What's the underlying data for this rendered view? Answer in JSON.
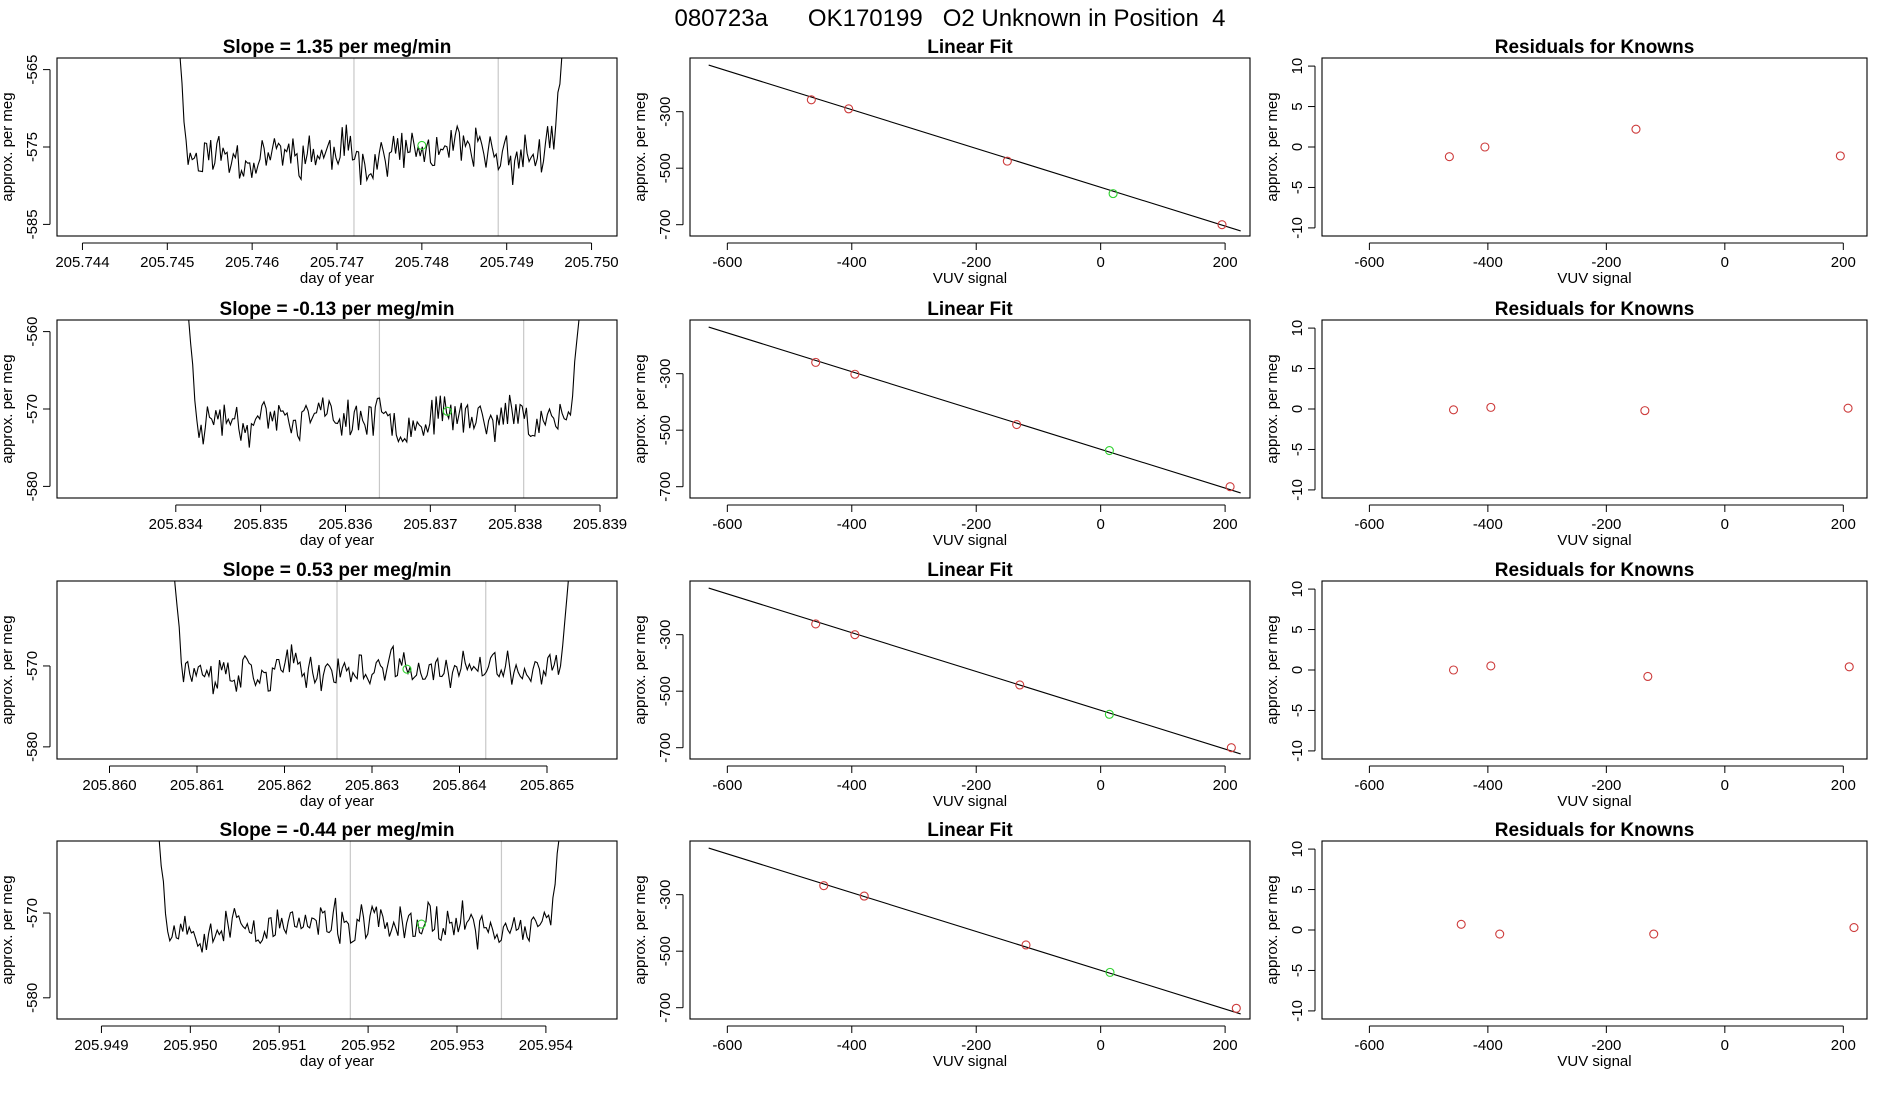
{
  "page_title": "080723a      OK170199   O2 Unknown in Position  4",
  "colors": {
    "axis": "#000000",
    "trace": "#000000",
    "known": "#cd3b3b",
    "unknown": "#2fd12f",
    "vline": "#c8c8c8"
  },
  "chart_data": [
    {
      "type": "line",
      "panel": "time-series",
      "row": 1,
      "title": "Slope =  1.35  per meg/min",
      "xlabel": "day of year",
      "ylabel": "approx. per meg",
      "xlim": [
        205.7437,
        205.7503
      ],
      "ylim": [
        -586.5,
        -563.5
      ],
      "xticks": [
        205.744,
        205.745,
        205.746,
        205.747,
        205.748,
        205.749,
        205.75
      ],
      "xtick_labels": [
        "205.744",
        "205.745",
        "205.746",
        "205.747",
        "205.748",
        "205.749",
        "205.750"
      ],
      "yticks": [
        -565,
        -575,
        -585
      ],
      "ytick_labels": [
        "-565",
        "-575",
        "-585"
      ],
      "trace_x_range": [
        205.7451,
        205.7497
      ],
      "trace_y_center": -576,
      "trace_amp": 3.8,
      "trace_seed": 11,
      "vlines": [
        205.7472,
        205.7489
      ],
      "unknown_point": [
        205.748,
        -574.8
      ]
    },
    {
      "type": "scatter",
      "panel": "linear-fit",
      "row": 1,
      "title": "Linear Fit",
      "xlabel": "VUV signal",
      "ylabel": "approx. per meg",
      "xlim": [
        -660,
        240
      ],
      "ylim": [
        -740,
        -110
      ],
      "xticks": [
        -600,
        -400,
        -200,
        0,
        200
      ],
      "xtick_labels": [
        "-600",
        "-400",
        "-200",
        "0",
        "200"
      ],
      "yticks": [
        -300,
        -500,
        -700
      ],
      "ytick_labels": [
        "-300",
        "-500",
        "-700"
      ],
      "fit_line": [
        [
          -630,
          -135
        ],
        [
          225,
          -722
        ]
      ],
      "known_points": [
        [
          -465,
          -258
        ],
        [
          -405,
          -290
        ],
        [
          -150,
          -475
        ],
        [
          195,
          -700
        ]
      ],
      "unknown_point": [
        20,
        -590
      ]
    },
    {
      "type": "scatter",
      "panel": "residuals",
      "row": 1,
      "title": "Residuals for Knowns",
      "xlabel": "VUV signal",
      "ylabel": "approx. per meg",
      "xlim": [
        -680,
        240
      ],
      "ylim": [
        -11,
        11
      ],
      "xticks": [
        -600,
        -400,
        -200,
        0,
        200
      ],
      "xtick_labels": [
        "-600",
        "-400",
        "-200",
        "0",
        "200"
      ],
      "yticks": [
        10,
        5,
        0,
        -5,
        -10
      ],
      "ytick_labels": [
        "10",
        "5",
        "0",
        "-5",
        "-10"
      ],
      "known_points": [
        [
          -465,
          -1.2
        ],
        [
          -405,
          0
        ],
        [
          -150,
          2.2
        ],
        [
          195,
          -1.1
        ]
      ]
    },
    {
      "type": "line",
      "panel": "time-series",
      "row": 2,
      "title": "Slope =  -0.13  per meg/min",
      "xlabel": "day of year",
      "ylabel": "approx. per meg",
      "xlim": [
        205.8326,
        205.8392
      ],
      "ylim": [
        -581.5,
        -558.5
      ],
      "xticks": [
        205.834,
        205.835,
        205.836,
        205.837,
        205.838,
        205.839
      ],
      "xtick_labels": [
        "205.834",
        "205.835",
        "205.836",
        "205.837",
        "205.838",
        "205.839"
      ],
      "yticks": [
        -560,
        -570,
        -580
      ],
      "ytick_labels": [
        "-560",
        "-570",
        "-580"
      ],
      "trace_x_range": [
        205.8341,
        205.8388
      ],
      "trace_y_center": -571,
      "trace_amp": 3.4,
      "trace_seed": 23,
      "vlines": [
        205.8364,
        205.8381
      ],
      "unknown_point": [
        205.8372,
        -570.3
      ]
    },
    {
      "type": "scatter",
      "panel": "linear-fit",
      "row": 2,
      "title": "Linear Fit",
      "xlabel": "VUV signal",
      "ylabel": "approx. per meg",
      "xlim": [
        -660,
        240
      ],
      "ylim": [
        -740,
        -110
      ],
      "xticks": [
        -600,
        -400,
        -200,
        0,
        200
      ],
      "xtick_labels": [
        "-600",
        "-400",
        "-200",
        "0",
        "200"
      ],
      "yticks": [
        -300,
        -500,
        -700
      ],
      "ytick_labels": [
        "-300",
        "-500",
        "-700"
      ],
      "fit_line": [
        [
          -630,
          -135
        ],
        [
          225,
          -722
        ]
      ],
      "known_points": [
        [
          -458,
          -260
        ],
        [
          -395,
          -302
        ],
        [
          -135,
          -480
        ],
        [
          208,
          -700
        ]
      ],
      "unknown_point": [
        14,
        -572
      ]
    },
    {
      "type": "scatter",
      "panel": "residuals",
      "row": 2,
      "title": "Residuals for Knowns",
      "xlabel": "VUV signal",
      "ylabel": "approx. per meg",
      "xlim": [
        -680,
        240
      ],
      "ylim": [
        -11,
        11
      ],
      "xticks": [
        -600,
        -400,
        -200,
        0,
        200
      ],
      "xtick_labels": [
        "-600",
        "-400",
        "-200",
        "0",
        "200"
      ],
      "yticks": [
        10,
        5,
        0,
        -5,
        -10
      ],
      "ytick_labels": [
        "10",
        "5",
        "0",
        "-5",
        "-10"
      ],
      "known_points": [
        [
          -458,
          -0.1
        ],
        [
          -395,
          0.2
        ],
        [
          -135,
          -0.2
        ],
        [
          208,
          0.1
        ]
      ]
    },
    {
      "type": "line",
      "panel": "time-series",
      "row": 3,
      "title": "Slope =  0.53  per meg/min",
      "xlabel": "day of year",
      "ylabel": "approx. per meg",
      "xlim": [
        205.8594,
        205.8658
      ],
      "ylim": [
        -581.5,
        -559.5
      ],
      "xticks": [
        205.86,
        205.861,
        205.862,
        205.863,
        205.864,
        205.865
      ],
      "xtick_labels": [
        "205.860",
        "205.861",
        "205.862",
        "205.863",
        "205.864",
        "205.865"
      ],
      "yticks": [
        -570,
        -580
      ],
      "ytick_labels": [
        "-570",
        "-580"
      ],
      "trace_x_range": [
        205.8607,
        205.8653
      ],
      "trace_y_center": -570.5,
      "trace_amp": 3.0,
      "trace_seed": 37,
      "vlines": [
        205.8626,
        205.8643
      ],
      "unknown_point": [
        205.8634,
        -570.4
      ]
    },
    {
      "type": "scatter",
      "panel": "linear-fit",
      "row": 3,
      "title": "Linear Fit",
      "xlabel": "VUV signal",
      "ylabel": "approx. per meg",
      "xlim": [
        -660,
        240
      ],
      "ylim": [
        -740,
        -110
      ],
      "xticks": [
        -600,
        -400,
        -200,
        0,
        200
      ],
      "xtick_labels": [
        "-600",
        "-400",
        "-200",
        "0",
        "200"
      ],
      "yticks": [
        -300,
        -500,
        -700
      ],
      "ytick_labels": [
        "-300",
        "-500",
        "-700"
      ],
      "fit_line": [
        [
          -630,
          -135
        ],
        [
          225,
          -722
        ]
      ],
      "known_points": [
        [
          -458,
          -262
        ],
        [
          -395,
          -300
        ],
        [
          -130,
          -478
        ],
        [
          210,
          -700
        ]
      ],
      "unknown_point": [
        14,
        -582
      ]
    },
    {
      "type": "scatter",
      "panel": "residuals",
      "row": 3,
      "title": "Residuals for Knowns",
      "xlabel": "VUV signal",
      "ylabel": "approx. per meg",
      "xlim": [
        -680,
        240
      ],
      "ylim": [
        -11,
        11
      ],
      "xticks": [
        -600,
        -400,
        -200,
        0,
        200
      ],
      "xtick_labels": [
        "-600",
        "-400",
        "-200",
        "0",
        "200"
      ],
      "yticks": [
        10,
        5,
        0,
        -5,
        -10
      ],
      "ytick_labels": [
        "10",
        "5",
        "0",
        "-5",
        "-10"
      ],
      "known_points": [
        [
          -458,
          0
        ],
        [
          -395,
          0.5
        ],
        [
          -130,
          -0.8
        ],
        [
          210,
          0.4
        ]
      ]
    },
    {
      "type": "line",
      "panel": "time-series",
      "row": 4,
      "title": "Slope =  -0.44  per meg/min",
      "xlabel": "day of year",
      "ylabel": "approx. per meg",
      "xlim": [
        205.9485,
        205.9548
      ],
      "ylim": [
        -582.5,
        -561.5
      ],
      "xticks": [
        205.949,
        205.95,
        205.951,
        205.952,
        205.953,
        205.954
      ],
      "xtick_labels": [
        "205.949",
        "205.950",
        "205.951",
        "205.952",
        "205.953",
        "205.954"
      ],
      "yticks": [
        -570,
        -580
      ],
      "ytick_labels": [
        "-570",
        "-580"
      ],
      "trace_x_range": [
        205.9496,
        205.9542
      ],
      "trace_y_center": -571.5,
      "trace_amp": 3.0,
      "trace_seed": 53,
      "vlines": [
        205.9518,
        205.9535
      ],
      "unknown_point": [
        205.9526,
        -571.3
      ]
    },
    {
      "type": "scatter",
      "panel": "linear-fit",
      "row": 4,
      "title": "Linear Fit",
      "xlabel": "VUV signal",
      "ylabel": "approx. per meg",
      "xlim": [
        -660,
        240
      ],
      "ylim": [
        -740,
        -110
      ],
      "xticks": [
        -600,
        -400,
        -200,
        0,
        200
      ],
      "xtick_labels": [
        "-600",
        "-400",
        "-200",
        "0",
        "200"
      ],
      "yticks": [
        -300,
        -500,
        -700
      ],
      "ytick_labels": [
        "-300",
        "-500",
        "-700"
      ],
      "fit_line": [
        [
          -630,
          -135
        ],
        [
          225,
          -722
        ]
      ],
      "known_points": [
        [
          -445,
          -268
        ],
        [
          -380,
          -305
        ],
        [
          -120,
          -478
        ],
        [
          218,
          -702
        ]
      ],
      "unknown_point": [
        15,
        -575
      ]
    },
    {
      "type": "scatter",
      "panel": "residuals",
      "row": 4,
      "title": "Residuals for Knowns",
      "xlabel": "VUV signal",
      "ylabel": "approx. per meg",
      "xlim": [
        -680,
        240
      ],
      "ylim": [
        -11,
        11
      ],
      "xticks": [
        -600,
        -400,
        -200,
        0,
        200
      ],
      "xtick_labels": [
        "-600",
        "-400",
        "-200",
        "0",
        "200"
      ],
      "yticks": [
        10,
        5,
        0,
        -5,
        -10
      ],
      "ytick_labels": [
        "10",
        "5",
        "0",
        "-5",
        "-10"
      ],
      "known_points": [
        [
          -445,
          0.7
        ],
        [
          -380,
          -0.5
        ],
        [
          -120,
          -0.5
        ],
        [
          218,
          0.3
        ]
      ]
    }
  ]
}
